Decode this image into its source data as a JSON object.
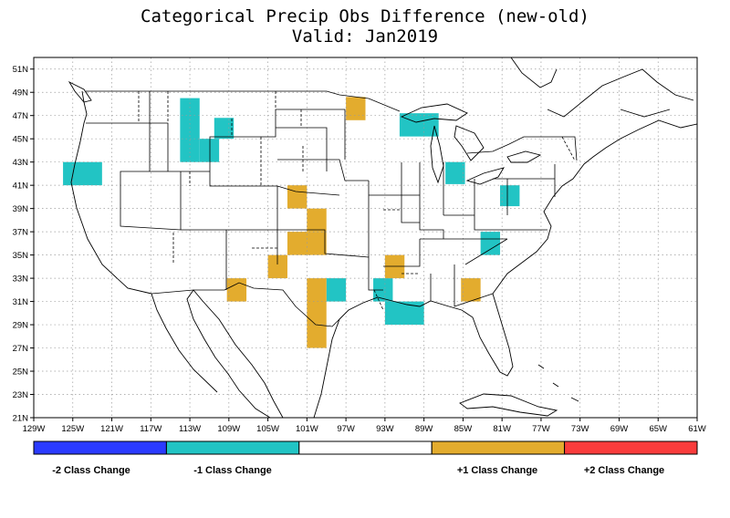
{
  "title_line1": "Categorical Precip Obs Difference (new-old)",
  "title_line2": "Valid: Jan2019",
  "map": {
    "lon_range": [
      -129,
      -61
    ],
    "lat_range": [
      21,
      52
    ],
    "lon_ticks": [
      {
        "value": -129,
        "label": "129W"
      },
      {
        "value": -125,
        "label": "125W"
      },
      {
        "value": -121,
        "label": "121W"
      },
      {
        "value": -117,
        "label": "117W"
      },
      {
        "value": -113,
        "label": "113W"
      },
      {
        "value": -109,
        "label": "109W"
      },
      {
        "value": -105,
        "label": "105W"
      },
      {
        "value": -101,
        "label": "101W"
      },
      {
        "value": -97,
        "label": "97W"
      },
      {
        "value": -93,
        "label": "93W"
      },
      {
        "value": -89,
        "label": "89W"
      },
      {
        "value": -85,
        "label": "85W"
      },
      {
        "value": -81,
        "label": "81W"
      },
      {
        "value": -77,
        "label": "77W"
      },
      {
        "value": -73,
        "label": "73W"
      },
      {
        "value": -69,
        "label": "69W"
      },
      {
        "value": -65,
        "label": "65W"
      },
      {
        "value": -61,
        "label": "61W"
      }
    ],
    "lat_ticks": [
      {
        "value": 21,
        "label": "21N"
      },
      {
        "value": 23,
        "label": "23N"
      },
      {
        "value": 25,
        "label": "25N"
      },
      {
        "value": 27,
        "label": "27N"
      },
      {
        "value": 29,
        "label": "29N"
      },
      {
        "value": 31,
        "label": "31N"
      },
      {
        "value": 33,
        "label": "33N"
      },
      {
        "value": 35,
        "label": "35N"
      },
      {
        "value": 37,
        "label": "37N"
      },
      {
        "value": 39,
        "label": "39N"
      },
      {
        "value": 41,
        "label": "41N"
      },
      {
        "value": 43,
        "label": "43N"
      },
      {
        "value": 45,
        "label": "45N"
      },
      {
        "value": 47,
        "label": "47N"
      },
      {
        "value": 49,
        "label": "49N"
      },
      {
        "value": 51,
        "label": "51N"
      }
    ],
    "grid": true
  },
  "cells": [
    {
      "lon0": -126,
      "lat0": 41,
      "lon1": -122,
      "lat1": 43,
      "change": -1
    },
    {
      "lon0": -114,
      "lat0": 43,
      "lon1": -112,
      "lat1": 48.5,
      "change": -1
    },
    {
      "lon0": -112,
      "lat0": 43,
      "lon1": -110,
      "lat1": 45,
      "change": -1
    },
    {
      "lon0": -110.5,
      "lat0": 45,
      "lon1": -108.5,
      "lat1": 46.8,
      "change": -1
    },
    {
      "lon0": -91.5,
      "lat0": 45.2,
      "lon1": -87.5,
      "lat1": 47.2,
      "change": -1
    },
    {
      "lon0": -86.8,
      "lat0": 41.1,
      "lon1": -84.8,
      "lat1": 43,
      "change": -1
    },
    {
      "lon0": -81.2,
      "lat0": 39.2,
      "lon1": -79.2,
      "lat1": 41,
      "change": -1
    },
    {
      "lon0": -83.2,
      "lat0": 35,
      "lon1": -81.2,
      "lat1": 37,
      "change": -1
    },
    {
      "lon0": -99,
      "lat0": 31,
      "lon1": -97,
      "lat1": 33,
      "change": -1
    },
    {
      "lon0": -94.2,
      "lat0": 31,
      "lon1": -92.2,
      "lat1": 33,
      "change": -1
    },
    {
      "lon0": -93,
      "lat0": 29,
      "lon1": -89,
      "lat1": 31,
      "change": -1
    },
    {
      "lon0": -97,
      "lat0": 46.6,
      "lon1": -95,
      "lat1": 48.6,
      "change": 1
    },
    {
      "lon0": -103,
      "lat0": 39,
      "lon1": -101,
      "lat1": 41,
      "change": 1
    },
    {
      "lon0": -101,
      "lat0": 37,
      "lon1": -99,
      "lat1": 39,
      "change": 1
    },
    {
      "lon0": -103,
      "lat0": 35,
      "lon1": -99,
      "lat1": 37,
      "change": 1
    },
    {
      "lon0": -105,
      "lat0": 33,
      "lon1": -103,
      "lat1": 35,
      "change": 1
    },
    {
      "lon0": -109.2,
      "lat0": 31,
      "lon1": -107.2,
      "lat1": 33,
      "change": 1
    },
    {
      "lon0": -101,
      "lat0": 27,
      "lon1": -99,
      "lat1": 33,
      "change": 1
    },
    {
      "lon0": -93,
      "lat0": 33,
      "lon1": -91,
      "lat1": 35,
      "change": 1
    },
    {
      "lon0": -85.2,
      "lat0": 31,
      "lon1": -83.2,
      "lat1": 33,
      "change": 1
    }
  ],
  "legend": {
    "colors": {
      "minus2": "#2b3bff",
      "minus1": "#22c4c4",
      "zero": "#ffffff",
      "plus1": "#e3ac2e",
      "plus2": "#fa3c3c"
    },
    "labels": [
      "-2 Class Change",
      "-1 Class Change",
      "+1 Class Change",
      "+2 Class Change"
    ]
  }
}
